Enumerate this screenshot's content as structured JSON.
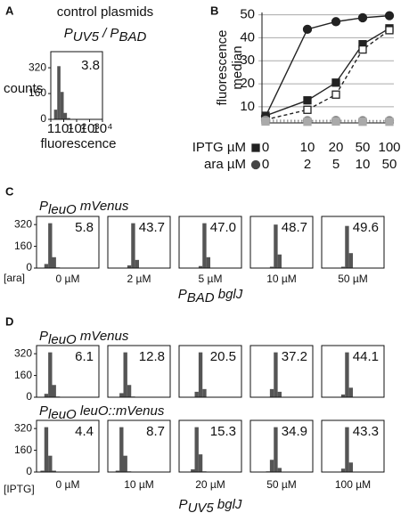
{
  "chart_data": [
    {
      "type": "histogram",
      "panel": "A",
      "title": "control plasmids",
      "subtitle": [
        {
          "text": "P"
        },
        {
          "text": "UV5",
          "style": "sub"
        },
        {
          "text": " / P"
        },
        {
          "text": "BAD",
          "style": "sub"
        }
      ],
      "ylabel": "counts",
      "xlabel": "fluorescence",
      "annotation": "3.8",
      "xscale": "log",
      "xlim": [
        1,
        10000
      ],
      "xticks": [
        1,
        {
          "value": 10,
          "label": "10¹"
        },
        {
          "value": 100,
          "label": "10²"
        },
        {
          "value": 1000,
          "label": "10³"
        },
        {
          "value": 10000,
          "label": "10⁴"
        }
      ],
      "ylim": [
        0,
        420
      ],
      "yticks": [
        0,
        160,
        320
      ],
      "color": "#555555",
      "bins": [
        1,
        1.78,
        3.16,
        5.62,
        10,
        17.8,
        31.6,
        56.2,
        100,
        178,
        316,
        562,
        1000,
        1780,
        3160,
        5620,
        10000
      ],
      "counts": [
        0,
        60,
        330,
        170,
        40,
        8,
        0,
        0,
        0,
        0,
        0,
        0,
        0,
        0,
        0,
        0
      ]
    },
    {
      "type": "line",
      "panel": "B",
      "ylabel": [
        "fluorescence",
        "median"
      ],
      "ylim": [
        3,
        51
      ],
      "yticks": [
        10,
        20,
        30,
        40,
        50
      ],
      "grid": true,
      "category_rows": [
        {
          "label": "IPTG µM",
          "marker": "square",
          "color": "#222222",
          "categories": [
            "0",
            "10",
            "20",
            "50",
            "100"
          ]
        },
        {
          "label": "ara µM",
          "marker": "circle",
          "color": "#444444",
          "categories": [
            "0",
            "2",
            "5",
            "10",
            "50"
          ]
        }
      ],
      "series": [
        {
          "color": "#222222",
          "marker": "circle",
          "fill": "filled",
          "dash": "solid",
          "values": [
            5.8,
            43.7,
            47.0,
            48.7,
            49.6
          ]
        },
        {
          "color": "#222222",
          "marker": "square",
          "fill": "filled",
          "dash": "solid",
          "values": [
            6.1,
            12.8,
            20.5,
            37.2,
            44.1
          ]
        },
        {
          "color": "#222222",
          "marker": "square",
          "fill": "open",
          "dash": "dashed",
          "values": [
            4.4,
            8.7,
            15.3,
            34.9,
            43.3
          ]
        },
        {
          "color": "#888888",
          "marker": "circle",
          "fill": "filled",
          "dash": "dotted",
          "values": [
            4.2,
            4.0,
            4.1,
            4.0,
            4.0
          ]
        },
        {
          "color": "#aaaaaa",
          "marker": "square",
          "fill": "filled",
          "dash": "dotted",
          "values": [
            3.6,
            3.5,
            3.6,
            3.5,
            3.5
          ]
        }
      ]
    },
    {
      "type": "histogram-grid",
      "panel": "C",
      "xscale": "log",
      "xlim": [
        1,
        10000
      ],
      "ylim": [
        0,
        380
      ],
      "yticks": [
        0,
        160,
        320
      ],
      "color": "#555555",
      "bins": [
        1,
        1.78,
        3.16,
        5.62,
        10,
        17.8,
        31.6,
        56.2,
        100,
        178,
        316,
        562,
        1000,
        1780,
        3160,
        5620,
        10000
      ],
      "column_labels": [
        "0 µM",
        "2 µM",
        "5 µM",
        "10 µM",
        "50 µM"
      ],
      "row_label": "[ara]",
      "xlabel": [
        {
          "text": "P"
        },
        {
          "text": "BAD",
          "style": "sub"
        },
        {
          "text": " bglJ"
        }
      ],
      "rows": [
        {
          "title": [
            {
              "text": "P"
            },
            {
              "text": "leuO",
              "style": "sub"
            },
            {
              "text": " mVenus"
            }
          ],
          "histograms": [
            {
              "annotation": "5.8",
              "counts": [
                0,
                0,
                30,
                330,
                80,
                5,
                0,
                0,
                0,
                0,
                0,
                0,
                0,
                0,
                0,
                0
              ]
            },
            {
              "annotation": "43.7",
              "counts": [
                0,
                0,
                0,
                0,
                0,
                20,
                330,
                60,
                0,
                0,
                0,
                0,
                0,
                0,
                0,
                0
              ]
            },
            {
              "annotation": "47.0",
              "counts": [
                0,
                0,
                0,
                0,
                0,
                15,
                330,
                80,
                0,
                0,
                0,
                0,
                0,
                0,
                0,
                0
              ]
            },
            {
              "annotation": "48.7",
              "counts": [
                0,
                0,
                0,
                0,
                0,
                10,
                320,
                100,
                0,
                0,
                0,
                0,
                0,
                0,
                0,
                0
              ]
            },
            {
              "annotation": "49.6",
              "counts": [
                0,
                0,
                0,
                0,
                0,
                10,
                310,
                110,
                0,
                0,
                0,
                0,
                0,
                0,
                0,
                0
              ]
            }
          ]
        }
      ]
    },
    {
      "type": "histogram-grid",
      "panel": "D",
      "xscale": "log",
      "xlim": [
        1,
        10000
      ],
      "ylim": [
        0,
        380
      ],
      "yticks": [
        0,
        160,
        320
      ],
      "color": "#555555",
      "bins": [
        1,
        1.78,
        3.16,
        5.62,
        10,
        17.8,
        31.6,
        56.2,
        100,
        178,
        316,
        562,
        1000,
        1780,
        3160,
        5620,
        10000
      ],
      "column_labels": [
        "0 µM",
        "10 µM",
        "20 µM",
        "50 µM",
        "100 µM"
      ],
      "row_label": "[IPTG]",
      "xlabel": [
        {
          "text": "P"
        },
        {
          "text": "UV5",
          "style": "sub"
        },
        {
          "text": " bglJ"
        }
      ],
      "rows": [
        {
          "title": [
            {
              "text": "P"
            },
            {
              "text": "leuO",
              "style": "sub"
            },
            {
              "text": " mVenus"
            }
          ],
          "histograms": [
            {
              "annotation": "6.1",
              "counts": [
                0,
                0,
                25,
                330,
                90,
                5,
                0,
                0,
                0,
                0,
                0,
                0,
                0,
                0,
                0,
                0
              ]
            },
            {
              "annotation": "12.8",
              "counts": [
                0,
                0,
                0,
                30,
                330,
                90,
                5,
                0,
                0,
                0,
                0,
                0,
                0,
                0,
                0,
                0
              ]
            },
            {
              "annotation": "20.5",
              "counts": [
                0,
                0,
                0,
                0,
                40,
                330,
                60,
                0,
                0,
                0,
                0,
                0,
                0,
                0,
                0,
                0
              ]
            },
            {
              "annotation": "37.2",
              "counts": [
                0,
                0,
                0,
                0,
                0,
                60,
                330,
                40,
                0,
                0,
                0,
                0,
                0,
                0,
                0,
                0
              ]
            },
            {
              "annotation": "44.1",
              "counts": [
                0,
                0,
                0,
                0,
                0,
                20,
                330,
                70,
                0,
                0,
                0,
                0,
                0,
                0,
                0,
                0
              ]
            }
          ]
        },
        {
          "title": [
            {
              "text": "P"
            },
            {
              "text": "leuO",
              "style": "sub"
            },
            {
              "text": " leuO::mVenus"
            }
          ],
          "histograms": [
            {
              "annotation": "4.4",
              "counts": [
                0,
                10,
                330,
                120,
                10,
                0,
                0,
                0,
                0,
                0,
                0,
                0,
                0,
                0,
                0,
                0
              ]
            },
            {
              "annotation": "8.7",
              "counts": [
                0,
                0,
                10,
                330,
                120,
                5,
                0,
                0,
                0,
                0,
                0,
                0,
                0,
                0,
                0,
                0
              ]
            },
            {
              "annotation": "15.3",
              "counts": [
                0,
                0,
                0,
                20,
                330,
                130,
                5,
                0,
                0,
                0,
                0,
                0,
                0,
                0,
                0,
                0
              ]
            },
            {
              "annotation": "34.9",
              "counts": [
                0,
                0,
                0,
                0,
                5,
                90,
                330,
                30,
                0,
                0,
                0,
                0,
                0,
                0,
                0,
                0
              ]
            },
            {
              "annotation": "43.3",
              "counts": [
                0,
                0,
                0,
                0,
                0,
                25,
                330,
                70,
                0,
                0,
                0,
                0,
                0,
                0,
                0,
                0
              ]
            }
          ]
        }
      ]
    }
  ]
}
